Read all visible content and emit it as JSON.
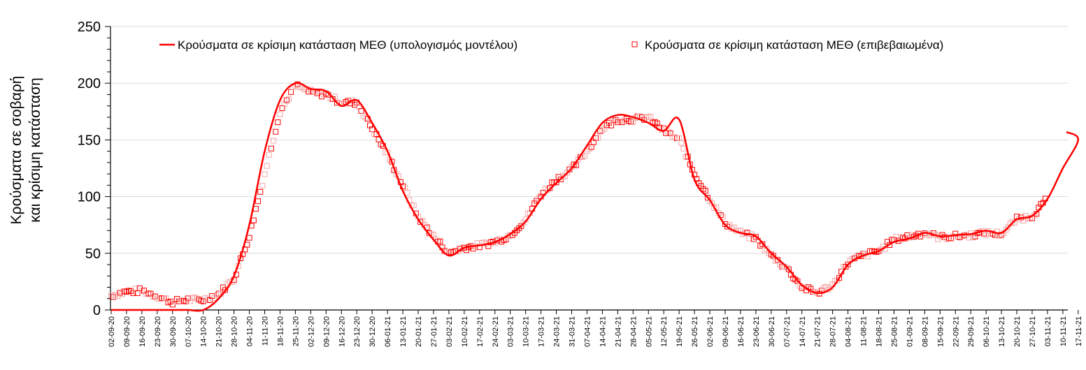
{
  "chart_data": {
    "type": "line",
    "title": "",
    "ylabel": [
      "Κρούσματα σε σοβαρή",
      "και κρίσιμη κατάσταση"
    ],
    "xlabel": "",
    "ylim": [
      0,
      250
    ],
    "yticks": [
      0,
      50,
      100,
      150,
      200,
      250
    ],
    "grid": true,
    "legend_position": "top",
    "colors": {
      "model": "#ff0000",
      "observed": "#ff0000",
      "grid": "#d9d9d9",
      "axis": "#000000"
    },
    "categories": [
      "02-09-20",
      "09-09-20",
      "16-09-20",
      "23-09-20",
      "30-09-20",
      "07-10-20",
      "14-10-20",
      "21-10-20",
      "28-10-20",
      "04-11-20",
      "11-11-20",
      "18-11-20",
      "25-11-20",
      "02-12-20",
      "09-12-20",
      "16-12-20",
      "23-12-20",
      "30-12-20",
      "06-01-21",
      "13-01-21",
      "20-01-21",
      "27-01-21",
      "03-02-21",
      "10-02-21",
      "17-02-21",
      "24-02-21",
      "03-03-21",
      "10-03-21",
      "17-03-21",
      "24-03-21",
      "31-03-21",
      "07-04-21",
      "14-04-21",
      "21-04-21",
      "28-04-21",
      "05-05-21",
      "12-05-21",
      "19-05-21",
      "26-05-21",
      "02-06-21",
      "09-06-21",
      "16-06-21",
      "23-06-21",
      "30-06-21",
      "07-07-21",
      "14-07-21",
      "21-07-21",
      "28-07-21",
      "04-08-21",
      "11-08-21",
      "18-08-21",
      "25-08-21",
      "01-09-21",
      "08-09-21",
      "15-09-21",
      "22-09-21",
      "29-09-21",
      "06-10-21",
      "13-10-21",
      "20-10-21",
      "27-10-21",
      "03-11-21",
      "10-11-21",
      "17-11-21"
    ],
    "series": [
      {
        "name": "Κρούσματα σε κρίσιμη κατάσταση ΜΕΘ (υπολογισμός μοντέλου)",
        "style": "line",
        "values": [
          0,
          0,
          0,
          0,
          0,
          0,
          0,
          10,
          30,
          75,
          140,
          185,
          200,
          195,
          193,
          180,
          185,
          165,
          140,
          105,
          80,
          62,
          48,
          55,
          57,
          60,
          67,
          78,
          98,
          112,
          125,
          145,
          165,
          172,
          170,
          165,
          158,
          168,
          115,
          97,
          75,
          68,
          65,
          50,
          38,
          22,
          15,
          20,
          40,
          48,
          52,
          60,
          63,
          68,
          65,
          66,
          67,
          70,
          68,
          80,
          83,
          98,
          125,
          150
        ]
      },
      {
        "name": "Κρούσματα σε κρίσιμη κατάσταση ΜΕΘ (επιβεβαιωμένα)",
        "style": "square-markers",
        "values": [
          13,
          16,
          17,
          12,
          7,
          9,
          9,
          14,
          28,
          65,
          120,
          175,
          198,
          192,
          190,
          183,
          183,
          160,
          137,
          110,
          82,
          65,
          50,
          55,
          57,
          60,
          66,
          80,
          102,
          115,
          124,
          140,
          160,
          168,
          168,
          170,
          158,
          150,
          120,
          98,
          77,
          68,
          63,
          48,
          37,
          20,
          15,
          22,
          42,
          48,
          52,
          62,
          65,
          68,
          64,
          65,
          66,
          68,
          67,
          80,
          83,
          98,
          null,
          null
        ]
      }
    ]
  },
  "legend": {
    "model_label": "Κρούσματα σε κρίσιμη κατάσταση ΜΕΘ (υπολογισμός μοντέλου)",
    "observed_label": "Κρούσματα σε κρίσιμη κατάσταση ΜΕΘ (επιβεβαιωμένα)"
  },
  "y_axis": {
    "title_line1": "Κρούσματα σε σοβαρή",
    "title_line2": "και κρίσιμη κατάσταση"
  }
}
